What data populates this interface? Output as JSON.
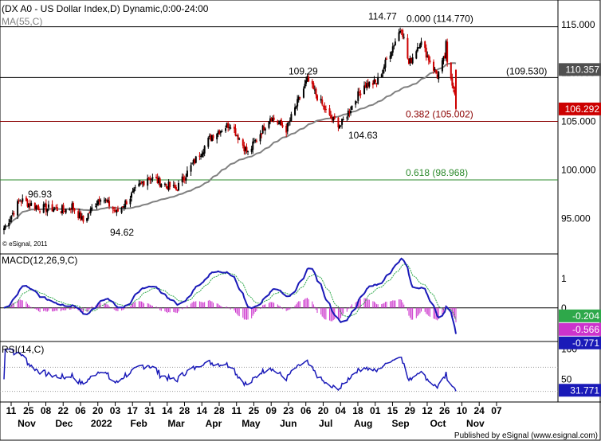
{
  "title": "(DX A0 - US Dollar Index,D) Dynamic,0:00-24:00",
  "ma_label": "MA(55,C)",
  "copyright": "© eSignal, 2011",
  "footer": "Published by eSignal (www.esignal.com)",
  "colors": {
    "candle_up": "#000000",
    "candle_down": "#cc0000",
    "ma": "#808080",
    "macd": "#1a1ab8",
    "signal": "#2ea84a",
    "histogram": "#cc33cc",
    "rsi": "#1a1ab8",
    "res_line": "#000000",
    "fib382": "#8b0000",
    "fib618": "#2e8b2e"
  },
  "chart_data": [
    {
      "type": "candlestick",
      "title": "(DX A0 - US Dollar Index,D) Dynamic,0:00-24:00",
      "ylim": [
        91.5,
        117.2
      ],
      "yticks": [
        95,
        100,
        105,
        110,
        115
      ],
      "ytick_labels": [
        "95.000",
        "100.000",
        "105.000",
        "110.000",
        "115.000"
      ],
      "price_badges": [
        {
          "label": "110.357",
          "value": 110.357,
          "color": "#505050"
        },
        {
          "label": "106.292",
          "value": 106.292,
          "color": "#cc0000"
        }
      ],
      "annotations": [
        {
          "text": "96.93",
          "value": 96.93
        },
        {
          "text": "94.62",
          "value": 94.62
        },
        {
          "text": "109.29",
          "value": 109.29
        },
        {
          "text": "104.63",
          "value": 104.63
        },
        {
          "text": "114.77",
          "value": 114.77
        },
        {
          "text": "0.000 (114.770)",
          "value": 114.77
        },
        {
          "text": "(109.530)",
          "value": 109.53
        },
        {
          "text": "0.382 (105.002)",
          "value": 105.002
        },
        {
          "text": "0.618 (98.968)",
          "value": 98.968
        }
      ],
      "horizontal_lines": [
        {
          "value": 114.77,
          "color": "#000000"
        },
        {
          "value": 109.53,
          "color": "#000000"
        },
        {
          "value": 105.002,
          "color": "#8b0000"
        },
        {
          "value": 98.968,
          "color": "#2e8b2e"
        }
      ],
      "close_anchors": [
        [
          "2021-11-11",
          94.0
        ],
        [
          "2021-11-24",
          96.9
        ],
        [
          "2021-12-10",
          96.1
        ],
        [
          "2021-12-31",
          95.9
        ],
        [
          "2022-01-05",
          96.3
        ],
        [
          "2022-01-14",
          94.7
        ],
        [
          "2022-01-28",
          97.3
        ],
        [
          "2022-02-10",
          95.6
        ],
        [
          "2022-03-07",
          99.3
        ],
        [
          "2022-03-30",
          98.0
        ],
        [
          "2022-04-28",
          103.6
        ],
        [
          "2022-05-13",
          104.8
        ],
        [
          "2022-05-27",
          101.7
        ],
        [
          "2022-06-14",
          105.5
        ],
        [
          "2022-06-27",
          104.2
        ],
        [
          "2022-07-14",
          109.29
        ],
        [
          "2022-08-01",
          105.4
        ],
        [
          "2022-08-10",
          104.63
        ],
        [
          "2022-08-29",
          108.8
        ],
        [
          "2022-09-08",
          109.0
        ],
        [
          "2022-09-28",
          114.77
        ],
        [
          "2022-10-04",
          110.9
        ],
        [
          "2022-10-13",
          113.3
        ],
        [
          "2022-10-27",
          109.7
        ],
        [
          "2022-11-02",
          111.6
        ],
        [
          "2022-11-03",
          112.9
        ],
        [
          "2022-11-04",
          110.8
        ],
        [
          "2022-11-10",
          108.2
        ],
        [
          "2022-11-11",
          106.292
        ]
      ]
    },
    {
      "type": "line",
      "name": "MACD(12,26,9,C)",
      "ylim": [
        -1.1,
        1.8
      ],
      "yticks": [
        0,
        1
      ],
      "ytick_labels": [
        "0",
        "1"
      ],
      "last_values": [
        {
          "label": "-0.204",
          "color": "#2ea84a"
        },
        {
          "label": "-0.566",
          "color": "#cc33cc"
        },
        {
          "label": "-0.771",
          "color": "#1a1ab8"
        }
      ]
    },
    {
      "type": "line",
      "name": "RSI(14,C)",
      "ylim": [
        15,
        110
      ],
      "yticks": [
        50,
        100
      ],
      "ytick_labels": [
        "50",
        "100"
      ],
      "last_value": {
        "label": "31.771",
        "color": "#1a1ab8"
      },
      "guide_lines": [
        30,
        70
      ]
    }
  ],
  "x_axis": {
    "day_ticks": [
      "11",
      "25",
      "08",
      "22",
      "06",
      "20",
      "03",
      "17",
      "31",
      "14",
      "28",
      "14",
      "28",
      "11",
      "25",
      "09",
      "23",
      "06",
      "20",
      "04",
      "18",
      "01",
      "15",
      "29",
      "12",
      "26",
      "10",
      "24",
      "07"
    ],
    "day_tick_dates": [
      "2021-11-11",
      "2021-11-25",
      "2021-12-08",
      "2021-12-22",
      "2022-01-06",
      "2022-01-20",
      "2022-02-03",
      "2022-02-17",
      "2022-03-31",
      "2022-04-14",
      "2022-04-28",
      "2022-05-14",
      "2022-05-28",
      "2022-06-11",
      "2022-06-25",
      "2022-07-09",
      "2022-07-23",
      "2022-08-06",
      "2022-08-20",
      "2022-09-04",
      "2022-09-18",
      "2022-10-01",
      "2022-10-15",
      "2022-10-29",
      "2022-11-12",
      "2022-11-26",
      "2022-12-10",
      "2022-12-24",
      "2023-01-07"
    ],
    "month_labels": [
      "Nov",
      "Dec",
      "2022",
      "Feb",
      "Mar",
      "Apr",
      "May",
      "Jun",
      "Jul",
      "Aug",
      "Sep",
      "Oct",
      "Nov"
    ],
    "month_label_dates": [
      "2021-11-24",
      "2021-12-23",
      "2022-01-22",
      "2022-02-20",
      "2022-03-22",
      "2022-04-21",
      "2022-05-21",
      "2022-06-20",
      "2022-07-20",
      "2022-08-19",
      "2022-09-18",
      "2022-10-18",
      "2022-11-17"
    ]
  }
}
